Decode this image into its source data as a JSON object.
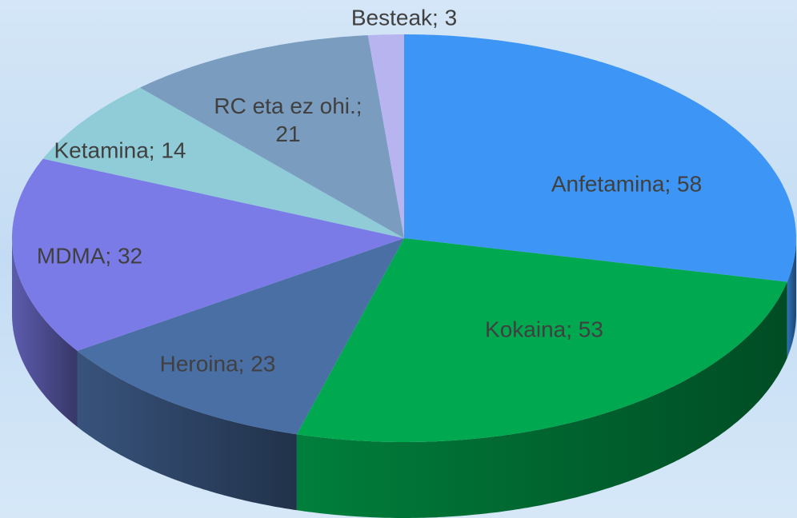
{
  "chart_data": {
    "type": "pie3d",
    "values": [
      58,
      53,
      23,
      32,
      14,
      21,
      3
    ],
    "value_labels": [
      "Anfetamina; 58",
      "Kokaina; 53",
      "Heroina; 23",
      "MDMA; 32",
      "Ketamina; 14",
      "RC eta ez ohi.; 21",
      "Besteak; 3"
    ],
    "colors": [
      "#3d96f5",
      "#00a94f",
      "#4a6fa5",
      "#7b7be8",
      "#90cbd8",
      "#7a9cbf",
      "#b8b4f0"
    ]
  }
}
